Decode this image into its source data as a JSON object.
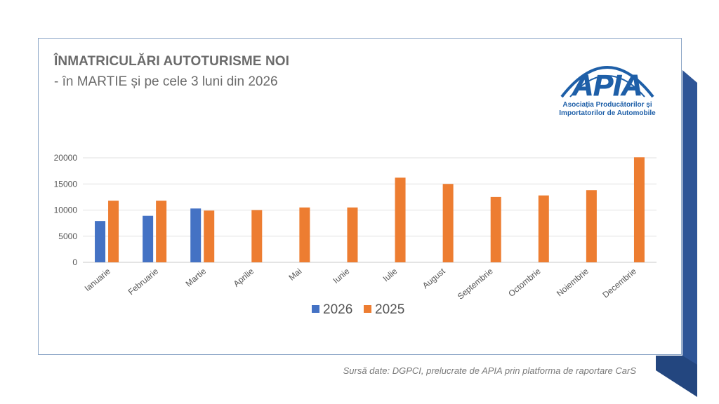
{
  "header": {
    "title": "ÎNMATRICULĂRI AUTOTURISME NOI",
    "subtitle": "- în MARTIE și pe cele 3 luni din 2026"
  },
  "logo": {
    "mark": "APIA",
    "line1": "Asociația Producătorilor și",
    "line2": "Importatorilor de Automobile",
    "color": "#1e5fa8"
  },
  "source": "Sursă date: DGPCI, prelucrate de APIA prin platforma de raportare CarS",
  "colors": {
    "ribbon": "#2e5597",
    "ribbon_dark": "#23467f"
  },
  "chart_data": {
    "type": "bar",
    "title": "",
    "xlabel": "",
    "ylabel": "",
    "ylim": [
      0,
      20000
    ],
    "yticks": [
      0,
      5000,
      10000,
      15000,
      20000
    ],
    "grid": true,
    "legend_position": "bottom",
    "categories": [
      "Ianuarie",
      "Februarie",
      "Martie",
      "Aprilie",
      "Mai",
      "Iunie",
      "Iulie",
      "August",
      "Septembrie",
      "Octombrie",
      "Noiembrie",
      "Decembrie"
    ],
    "series": [
      {
        "name": "2026",
        "color": "#4472c4",
        "values": [
          7900,
          8900,
          10300,
          null,
          null,
          null,
          null,
          null,
          null,
          null,
          null,
          null
        ]
      },
      {
        "name": "2025",
        "color": "#ed7d31",
        "values": [
          11800,
          11800,
          9900,
          10000,
          10500,
          10500,
          16200,
          15000,
          12500,
          12800,
          13800,
          20100
        ]
      }
    ]
  }
}
